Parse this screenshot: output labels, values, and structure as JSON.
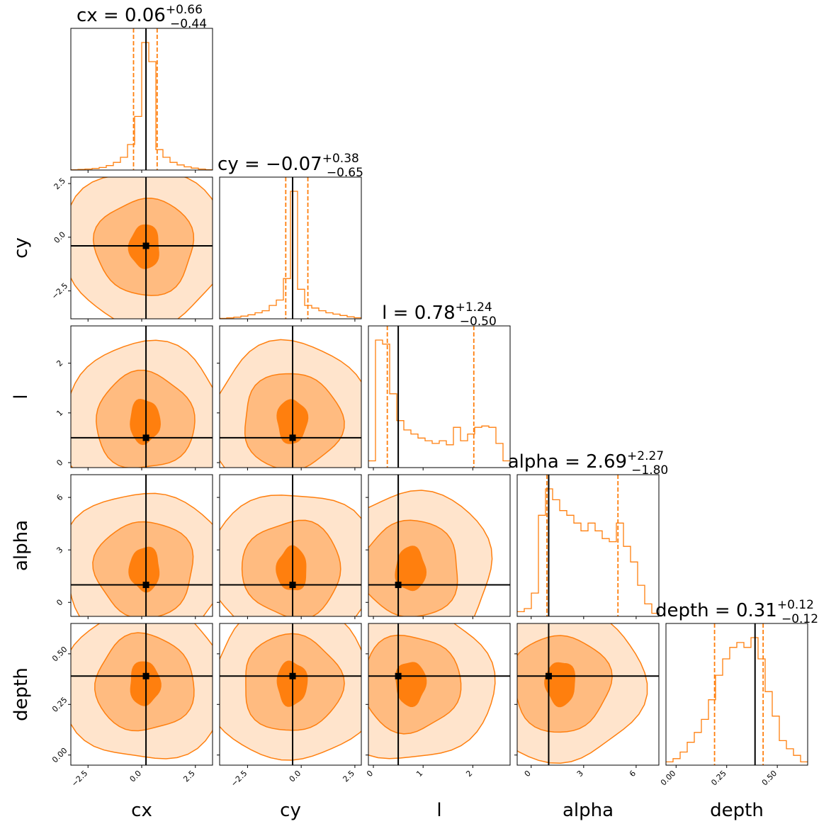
{
  "chart_data": {
    "type": "corner",
    "title": "",
    "accent_color": "#ff7f0e",
    "truth_color": "#000000",
    "fill_colors": [
      "#ffe4cc",
      "#ffbb80",
      "#ff7f0e"
    ],
    "parameters": [
      {
        "name": "cx",
        "xlabel": "cx",
        "ylabel": "",
        "range": [
          -3.3,
          3.3
        ],
        "ticks": [
          -2.5,
          0.0,
          2.5
        ],
        "tick_labels": [
          "−2.5",
          "0.0",
          "2.5"
        ],
        "truth": 0.2,
        "title": {
          "lhs": "cx",
          "value": "0.06",
          "plus": "+0.66",
          "minus": "−0.44"
        },
        "quantiles": [
          -0.38,
          0.72
        ],
        "hist": [
          0.002,
          0.005,
          0.008,
          0.012,
          0.02,
          0.035,
          0.06,
          0.1,
          0.2,
          0.42,
          1.0,
          0.85,
          0.16,
          0.1,
          0.06,
          0.04,
          0.025,
          0.015,
          0.008,
          0.003
        ]
      },
      {
        "name": "cy",
        "xlabel": "cy",
        "ylabel": "cy",
        "range": [
          -3.8,
          2.8
        ],
        "ticks": [
          -2.5,
          0.0,
          2.5
        ],
        "tick_labels": [
          "−2.5",
          "0.0",
          "2.5"
        ],
        "truth": -0.4,
        "title": {
          "lhs": "cy",
          "value": "−0.07",
          "plus": "+0.38",
          "minus": "−0.65"
        },
        "quantiles": [
          -0.72,
          0.31
        ],
        "hist": [
          0.003,
          0.007,
          0.012,
          0.02,
          0.03,
          0.045,
          0.06,
          0.1,
          0.14,
          0.3,
          0.95,
          0.22,
          0.1,
          0.08,
          0.06,
          0.045,
          0.035,
          0.025,
          0.015,
          0.008
        ]
      },
      {
        "name": "l",
        "xlabel": "l",
        "ylabel": "l",
        "range": [
          -0.1,
          2.75
        ],
        "ticks": [
          0,
          1,
          2
        ],
        "tick_labels": [
          "0",
          "1",
          "2"
        ],
        "truth": 0.5,
        "title": {
          "lhs": "l",
          "value": "0.78",
          "plus": "+1.24",
          "minus": "−0.50"
        },
        "quantiles": [
          0.28,
          2.02
        ],
        "hist": [
          0.05,
          0.95,
          0.92,
          0.55,
          0.35,
          0.28,
          0.25,
          0.22,
          0.2,
          0.18,
          0.2,
          0.17,
          0.3,
          0.2,
          0.25,
          0.3,
          0.31,
          0.3,
          0.18,
          0.05
        ]
      },
      {
        "name": "alpha",
        "xlabel": "alpha",
        "ylabel": "alpha",
        "range": [
          -0.8,
          7.3
        ],
        "ticks": [
          0,
          3,
          6
        ],
        "tick_labels": [
          "0",
          "3",
          "6"
        ],
        "truth": 1.0,
        "title": {
          "lhs": "alpha",
          "value": "2.69",
          "plus": "+2.27",
          "minus": "−1.80"
        },
        "quantiles": [
          0.9,
          4.96
        ],
        "hist": [
          0.03,
          0.05,
          0.15,
          0.65,
          0.82,
          0.75,
          0.68,
          0.65,
          0.6,
          0.55,
          0.6,
          0.55,
          0.5,
          0.48,
          0.6,
          0.45,
          0.35,
          0.2,
          0.08,
          0.02
        ]
      },
      {
        "name": "depth",
        "xlabel": "depth",
        "ylabel": "depth",
        "range": [
          -0.05,
          0.65
        ],
        "ticks": [
          0.0,
          0.25,
          0.5
        ],
        "tick_labels": [
          "0.00",
          "0.25",
          "0.50"
        ],
        "truth": 0.39,
        "title": {
          "lhs": "depth",
          "value": "0.31",
          "plus": "+0.12",
          "minus": "−0.12"
        },
        "quantiles": [
          0.19,
          0.43
        ],
        "hist": [
          0.02,
          0.04,
          0.08,
          0.14,
          0.2,
          0.28,
          0.4,
          0.55,
          0.65,
          0.72,
          0.75,
          0.72,
          0.78,
          0.65,
          0.45,
          0.3,
          0.15,
          0.1,
          0.06,
          0.02
        ]
      }
    ]
  }
}
